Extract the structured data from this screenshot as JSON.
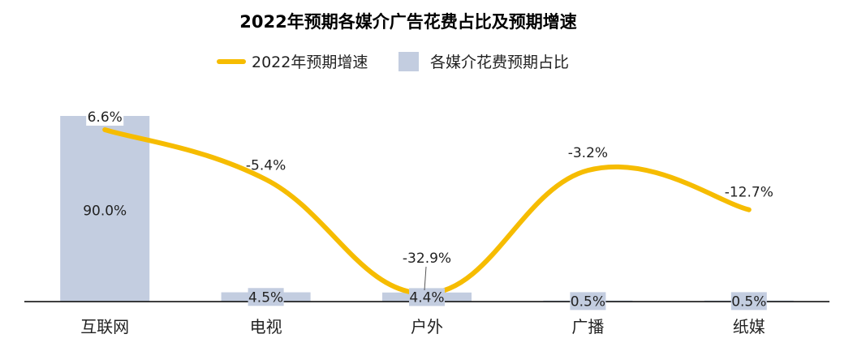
{
  "chart_data": {
    "type": "bar",
    "title": "2022年预期各媒介广告花费占比及预期增速",
    "categories": [
      "互联网",
      "电视",
      "户外",
      "广播",
      "纸媒"
    ],
    "series": [
      {
        "name": "各媒介花费预期占比",
        "type": "bar",
        "color": "#c3cde0",
        "values": [
          90.0,
          4.5,
          4.4,
          0.5,
          0.5
        ],
        "labels": [
          "90.0%",
          "4.5%",
          "4.4%",
          "0.5%",
          "0.5%"
        ]
      },
      {
        "name": "2022年预期增速",
        "type": "line",
        "color": "#f6bc00",
        "values": [
          6.6,
          -5.4,
          -32.9,
          -3.2,
          -12.7
        ],
        "labels": [
          "6.6%",
          "-5.4%",
          "-32.9%",
          "-3.2%",
          "-12.7%"
        ]
      }
    ],
    "legend_position": "top",
    "grid": false
  }
}
